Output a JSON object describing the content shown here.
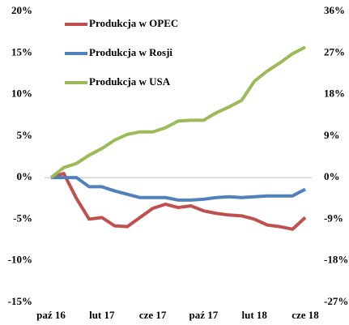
{
  "chart_data": {
    "type": "line",
    "categories": [
      "paź 16",
      null,
      null,
      null,
      "lut 17",
      null,
      null,
      null,
      "cze 17",
      null,
      null,
      null,
      "paź 17",
      null,
      null,
      null,
      "lut 18",
      null,
      null,
      null,
      "cze 18"
    ],
    "series": [
      {
        "name": "Produkcja w OPEC",
        "color": "#c0504d",
        "values": [
          0,
          0.5,
          -2.5,
          -5.0,
          -4.8,
          -5.8,
          -5.9,
          -4.8,
          -3.7,
          -3.2,
          -3.6,
          -3.4,
          -4.0,
          -4.3,
          -4.5,
          -4.6,
          -5.0,
          -5.7,
          -5.9,
          -6.2,
          -4.8
        ]
      },
      {
        "name": "Produkcja w Rosji",
        "color": "#4f81bd",
        "values": [
          0,
          0,
          0,
          -1.1,
          -1.1,
          -1.6,
          -2.0,
          -2.4,
          -2.4,
          -2.4,
          -2.7,
          -2.7,
          -2.6,
          -2.4,
          -2.3,
          -2.4,
          -2.3,
          -2.2,
          -2.2,
          -2.2,
          -1.4
        ]
      },
      {
        "name": "Produkcja w USA",
        "color": "#9bbb59",
        "values": [
          0,
          1.2,
          1.7,
          2.7,
          3.5,
          4.5,
          5.2,
          5.5,
          5.5,
          6.0,
          6.8,
          6.9,
          6.9,
          7.8,
          8.5,
          9.3,
          11.6,
          12.8,
          13.8,
          14.9,
          15.7
        ]
      }
    ],
    "ylim": [
      -15,
      20
    ],
    "yticks": [
      {
        "value": -15,
        "label": "-15%"
      },
      {
        "value": -10,
        "label": "-10%"
      },
      {
        "value": -5,
        "label": "-5%"
      },
      {
        "value": 0,
        "label": "0%"
      },
      {
        "value": 5,
        "label": "5%"
      },
      {
        "value": 10,
        "label": "10%"
      },
      {
        "value": 15,
        "label": "15%"
      },
      {
        "value": 20,
        "label": "20%"
      }
    ],
    "y2lim": [
      -27,
      36
    ],
    "y2ticks": [
      {
        "value": -27,
        "label": "-27%"
      },
      {
        "value": -18,
        "label": "-18%"
      },
      {
        "value": -9,
        "label": "-9%"
      },
      {
        "value": 0,
        "label": "0%"
      },
      {
        "value": 9,
        "label": "9%"
      },
      {
        "value": 18,
        "label": "18%"
      },
      {
        "value": 27,
        "label": "27%"
      },
      {
        "value": 36,
        "label": "36%"
      }
    ],
    "legend": "upper left"
  }
}
